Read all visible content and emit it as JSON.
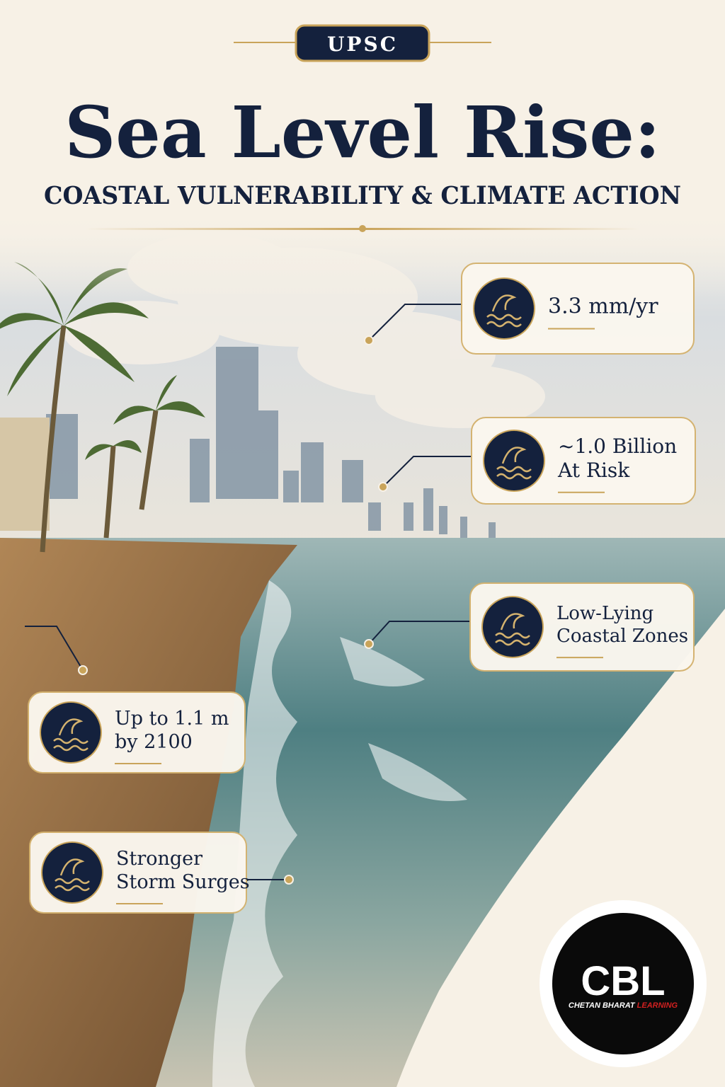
{
  "header": {
    "badge": "UPSC",
    "title": "Sea Level Rise:",
    "subtitle": "COASTAL VULNERABILITY & CLIMATE ACTION"
  },
  "callouts": [
    {
      "lines": [
        "3.3 mm/yr"
      ]
    },
    {
      "lines": [
        "~1.0 Billion",
        "At Risk"
      ]
    },
    {
      "lines": [
        "Low-Lying",
        "Coastal Zones"
      ]
    },
    {
      "lines": [
        "Up to 1.1 m",
        "by 2100"
      ]
    },
    {
      "lines": [
        "Stronger",
        "Storm Surges"
      ]
    }
  ],
  "logo": {
    "mark": "CBL",
    "name_main": "CHETAN BHARAT",
    "name_accent": "LEARNING"
  }
}
